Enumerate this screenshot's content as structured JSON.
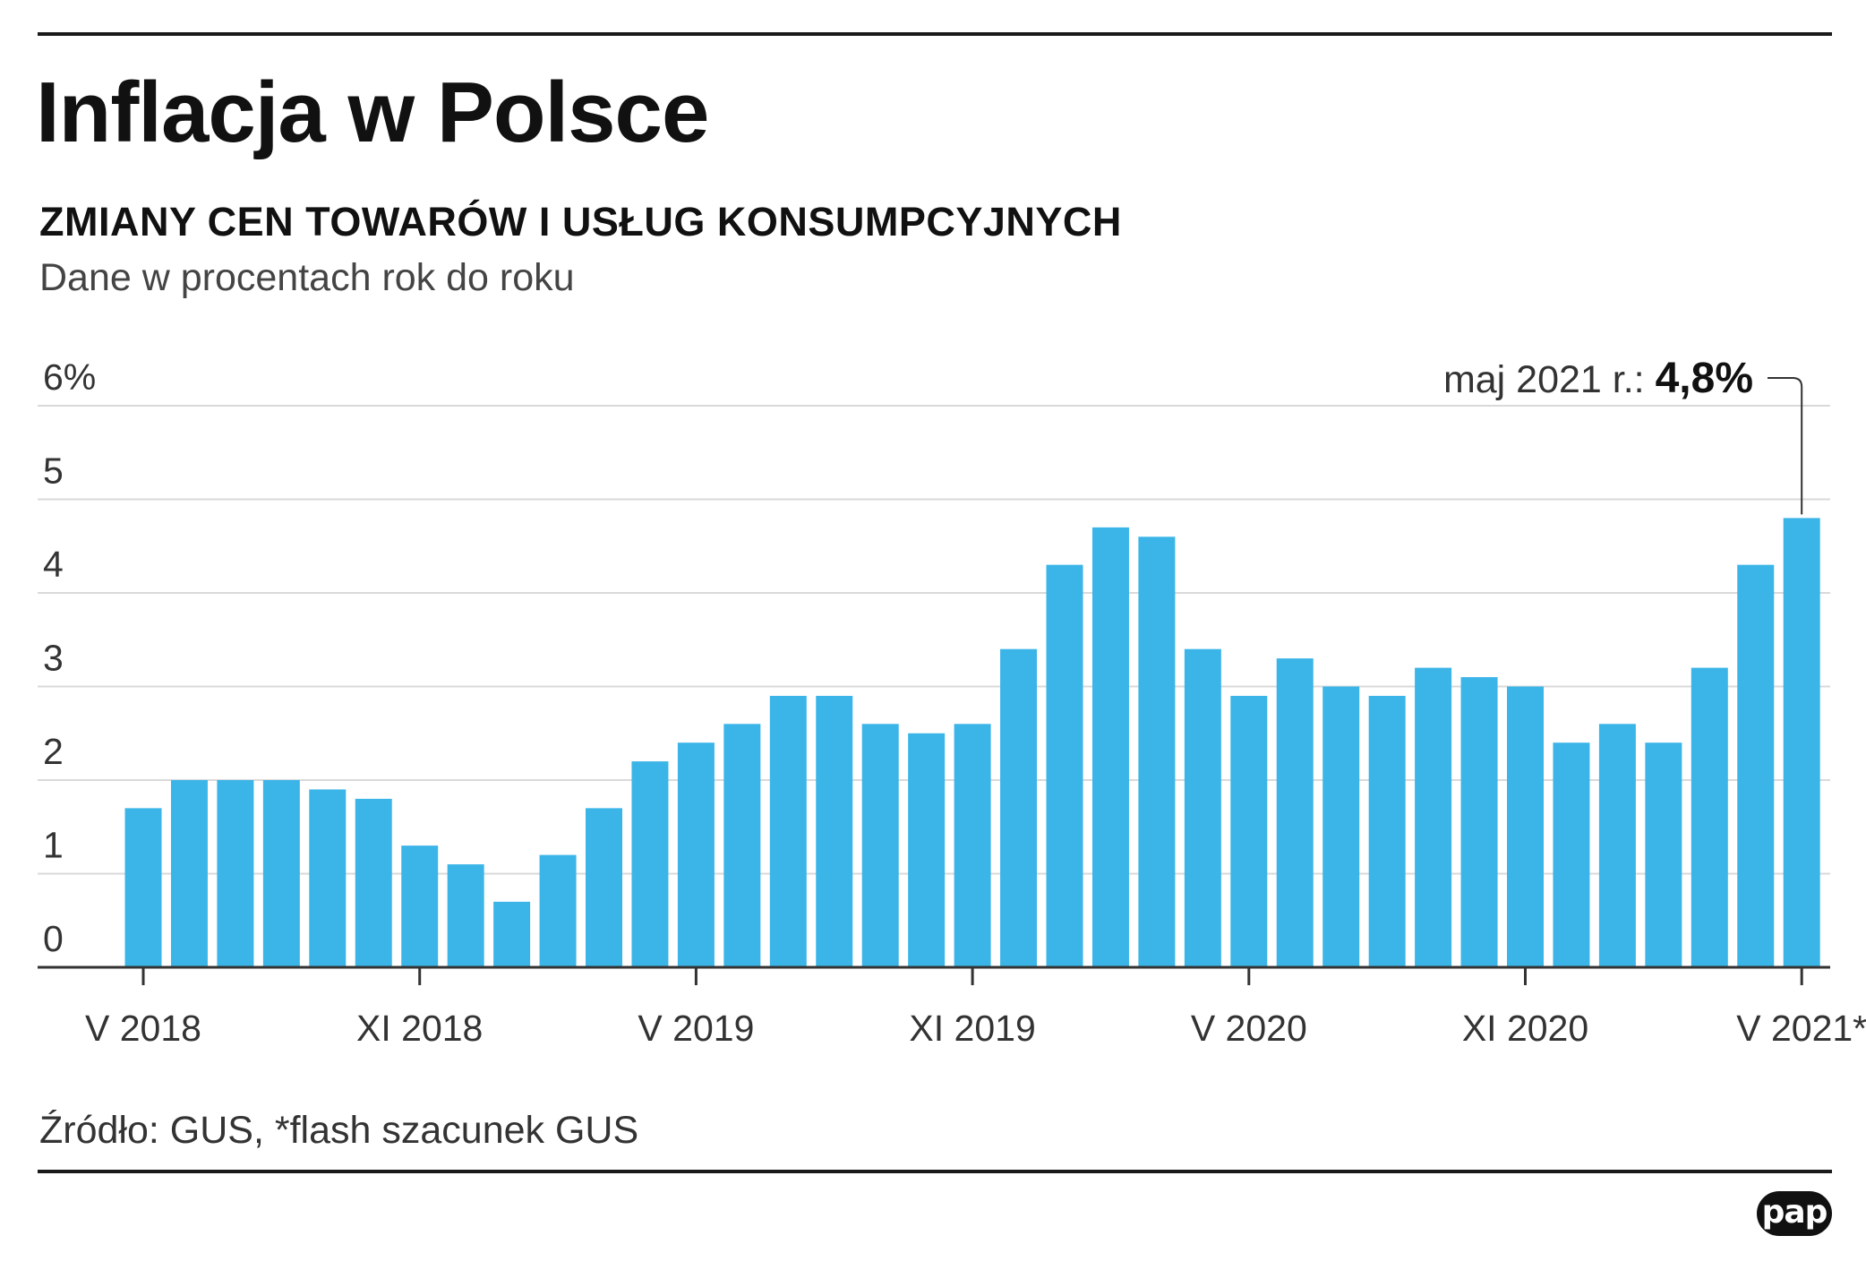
{
  "header": {
    "title": "Inflacja w Polsce",
    "subtitle": "ZMIANY CEN TOWARÓW I USŁUG KONSUMPCYJNYCH",
    "unit_note": "Dane w procentach rok do roku"
  },
  "footer": {
    "source": "Źródło: GUS, *flash szacunek GUS",
    "logo": "pap"
  },
  "colors": {
    "bar": "#3BB5E8",
    "grid": "#d9d9d9",
    "axis": "#333333",
    "text": "#1a1a1a"
  },
  "chart_data": {
    "type": "bar",
    "ylim": [
      0,
      6
    ],
    "y_ticks": [
      "0",
      "1",
      "2",
      "3",
      "4",
      "5",
      "6%"
    ],
    "grid": true,
    "x_tick_labels": [
      {
        "index": 0,
        "label": "V 2018"
      },
      {
        "index": 6,
        "label": "XI 2018"
      },
      {
        "index": 12,
        "label": "V 2019"
      },
      {
        "index": 18,
        "label": "XI 2019"
      },
      {
        "index": 24,
        "label": "V 2020"
      },
      {
        "index": 30,
        "label": "XI 2020"
      },
      {
        "index": 36,
        "label": "V 2021*"
      }
    ],
    "values": [
      1.7,
      2.0,
      2.0,
      2.0,
      1.9,
      1.8,
      1.3,
      1.1,
      0.7,
      1.2,
      1.7,
      2.2,
      2.4,
      2.6,
      2.9,
      2.9,
      2.6,
      2.5,
      2.6,
      3.4,
      4.3,
      4.7,
      4.6,
      3.4,
      2.9,
      3.3,
      3.0,
      2.9,
      3.2,
      3.1,
      3.0,
      2.4,
      2.6,
      2.4,
      3.2,
      4.3,
      4.8
    ],
    "annotation": {
      "index": 36,
      "text": "maj 2021 r.: ",
      "value": "4,8%"
    }
  }
}
